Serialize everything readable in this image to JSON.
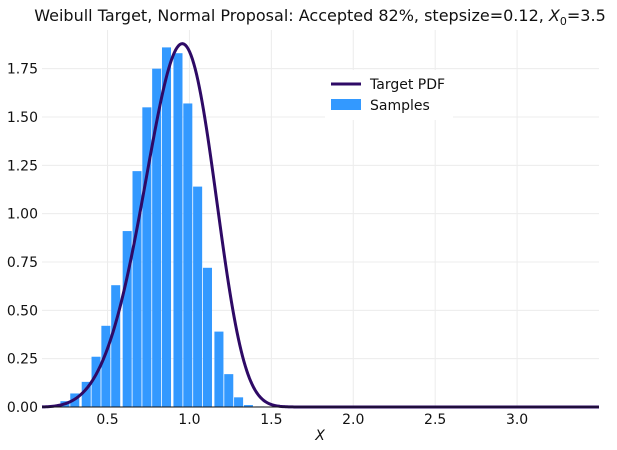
{
  "chart_data": {
    "type": "bar",
    "title": {
      "prefix": "Weibull Target, Normal Proposal: Accepted 82%, stepsize=0.12, ",
      "var": "X",
      "sub": "0",
      "suffix": "=3.5"
    },
    "xlabel": "X",
    "ylabel": "",
    "xlim": [
      0.1,
      3.5
    ],
    "ylim": [
      0,
      1.95
    ],
    "xticks": [
      0.5,
      1.0,
      1.5,
      2.0,
      2.5,
      3.0
    ],
    "xtick_labels": [
      "0.5",
      "1.0",
      "1.5",
      "2.0",
      "2.5",
      "3.0"
    ],
    "yticks": [
      0,
      0.25,
      0.5,
      0.75,
      1.0,
      1.25,
      1.5,
      1.75
    ],
    "ytick_labels": [
      "0.00",
      "0.25",
      "0.50",
      "0.75",
      "1.00",
      "1.25",
      "1.50",
      "1.75"
    ],
    "grid": true,
    "legend_position": "top-right",
    "series": [
      {
        "name": "Samples",
        "kind": "histogram",
        "color": "#3399ff",
        "bin_width": 0.0625,
        "bin_centers": [
          0.18,
          0.24,
          0.3,
          0.37,
          0.43,
          0.49,
          0.55,
          0.62,
          0.68,
          0.74,
          0.8,
          0.86,
          0.93,
          0.99,
          1.05,
          1.11,
          1.18,
          1.24,
          1.3,
          1.36,
          1.43,
          1.49
        ],
        "values": [
          0.005,
          0.03,
          0.07,
          0.13,
          0.26,
          0.42,
          0.63,
          0.91,
          1.22,
          1.55,
          1.75,
          1.86,
          1.83,
          1.57,
          1.14,
          0.72,
          0.39,
          0.17,
          0.05,
          0.01,
          0.003,
          0.001
        ]
      },
      {
        "name": "Target PDF",
        "kind": "line",
        "color": "#2e0a66",
        "function": "weibull_pdf",
        "shape": 5,
        "scale": 1
      }
    ]
  }
}
